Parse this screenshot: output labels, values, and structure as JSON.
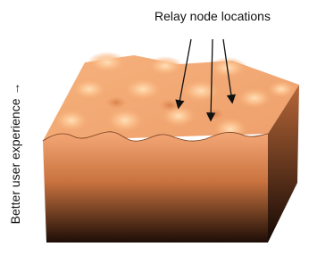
{
  "annotation": "Relay node locations",
  "axis_label": "Better user experience →"
}
